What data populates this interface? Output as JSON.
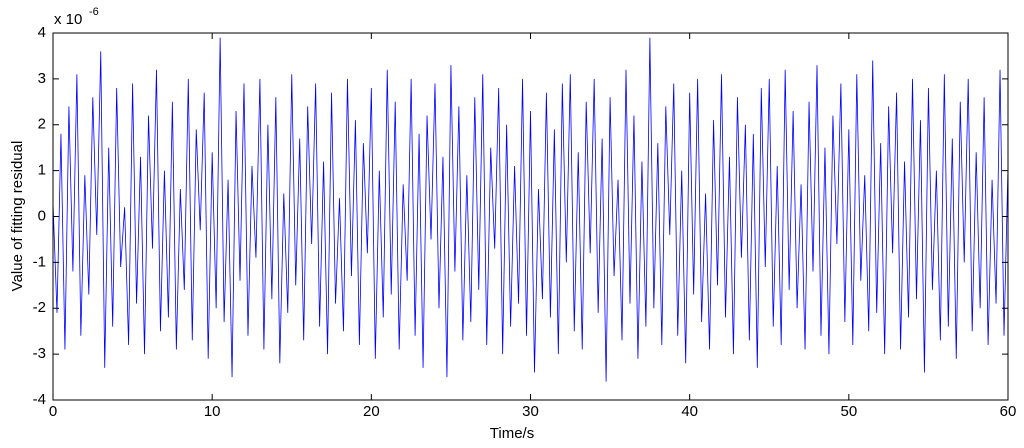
{
  "chart_data": {
    "type": "line",
    "xlabel": "Time/s",
    "ylabel": "Value of fitting residual",
    "exponent_label": {
      "base": "x 10",
      "power": "-6"
    },
    "color": "#0000ff",
    "xlim": [
      0,
      60
    ],
    "xticks": [
      0,
      10,
      20,
      30,
      40,
      50,
      60
    ],
    "ylim": [
      -4,
      4
    ],
    "yticks": [
      -4,
      -3,
      -2,
      -1,
      0,
      1,
      2,
      3,
      4
    ],
    "x": [
      0,
      0.25,
      0.5,
      0.75,
      1,
      1.25,
      1.5,
      1.75,
      2,
      2.25,
      2.5,
      2.75,
      3,
      3.25,
      3.5,
      3.75,
      4,
      4.25,
      4.5,
      4.75,
      5,
      5.25,
      5.5,
      5.75,
      6,
      6.25,
      6.5,
      6.75,
      7,
      7.25,
      7.5,
      7.75,
      8,
      8.25,
      8.5,
      8.75,
      9,
      9.25,
      9.5,
      9.75,
      10,
      10.25,
      10.5,
      10.75,
      11,
      11.25,
      11.5,
      11.75,
      12,
      12.25,
      12.5,
      12.75,
      13,
      13.25,
      13.5,
      13.75,
      14,
      14.25,
      14.5,
      14.75,
      15,
      15.25,
      15.5,
      15.75,
      16,
      16.25,
      16.5,
      16.75,
      17,
      17.25,
      17.5,
      17.75,
      18,
      18.25,
      18.5,
      18.75,
      19,
      19.25,
      19.5,
      19.75,
      20,
      20.25,
      20.5,
      20.75,
      21,
      21.25,
      21.5,
      21.75,
      22,
      22.25,
      22.5,
      22.75,
      23,
      23.25,
      23.5,
      23.75,
      24,
      24.25,
      24.5,
      24.75,
      25,
      25.25,
      25.5,
      25.75,
      26,
      26.25,
      26.5,
      26.75,
      27,
      27.25,
      27.5,
      27.75,
      28,
      28.25,
      28.5,
      28.75,
      29,
      29.25,
      29.5,
      29.75,
      30,
      30.25,
      30.5,
      30.75,
      31,
      31.25,
      31.5,
      31.75,
      32,
      32.25,
      32.5,
      32.75,
      33,
      33.25,
      33.5,
      33.75,
      34,
      34.25,
      34.5,
      34.75,
      35,
      35.25,
      35.5,
      35.75,
      36,
      36.25,
      36.5,
      36.75,
      37,
      37.25,
      37.5,
      37.75,
      38,
      38.25,
      38.5,
      38.75,
      39,
      39.25,
      39.5,
      39.75,
      40,
      40.25,
      40.5,
      40.75,
      41,
      41.25,
      41.5,
      41.75,
      42,
      42.25,
      42.5,
      42.75,
      43,
      43.25,
      43.5,
      43.75,
      44,
      44.25,
      44.5,
      44.75,
      45,
      45.25,
      45.5,
      45.75,
      46,
      46.25,
      46.5,
      46.75,
      47,
      47.25,
      47.5,
      47.75,
      48,
      48.25,
      48.5,
      48.75,
      49,
      49.25,
      49.5,
      49.75,
      50,
      50.25,
      50.5,
      50.75,
      51,
      51.25,
      51.5,
      51.75,
      52,
      52.25,
      52.5,
      52.75,
      53,
      53.25,
      53.5,
      53.75,
      54,
      54.25,
      54.5,
      54.75,
      55,
      55.25,
      55.5,
      55.75,
      56,
      56.25,
      56.5,
      56.75,
      57,
      57.25,
      57.5,
      57.75,
      58,
      58.25,
      58.5,
      58.75,
      59,
      59.25,
      59.5,
      59.75,
      60
    ],
    "values": [
      0.3,
      -2.1,
      1.8,
      -2.9,
      2.4,
      -1.2,
      3.1,
      -2.6,
      0.9,
      -1.7,
      2.6,
      -0.4,
      3.6,
      -3.3,
      1.5,
      -2.4,
      2.8,
      -1.1,
      0.2,
      -2.8,
      2.9,
      -1.9,
      1.3,
      -3.0,
      2.2,
      -0.7,
      3.2,
      -2.5,
      1.0,
      -2.2,
      2.5,
      -2.9,
      0.6,
      -1.6,
      3.0,
      -2.7,
      1.9,
      -0.3,
      2.7,
      -3.1,
      1.4,
      -2.0,
      3.9,
      -2.3,
      0.8,
      -3.5,
      2.3,
      -1.4,
      2.9,
      -2.6,
      1.1,
      -0.9,
      3.0,
      -2.9,
      2.0,
      -1.8,
      2.6,
      -3.2,
      0.5,
      -2.1,
      3.1,
      -1.5,
      1.7,
      -2.7,
      2.4,
      -0.6,
      2.9,
      -2.4,
      1.2,
      -3.0,
      2.7,
      -1.9,
      0.4,
      -2.5,
      3.0,
      -1.3,
      2.1,
      -2.8,
      1.6,
      -0.8,
      2.8,
      -3.1,
      1.0,
      -2.2,
      3.2,
      -1.7,
      2.5,
      -2.9,
      0.7,
      -1.4,
      3.0,
      -2.6,
      1.8,
      -3.3,
      2.2,
      -0.5,
      2.9,
      -2.0,
      1.3,
      -3.5,
      3.3,
      -1.2,
      2.4,
      -2.7,
      0.9,
      -2.3,
      2.6,
      -1.6,
      3.1,
      -2.8,
      1.5,
      -0.7,
      2.8,
      -3.0,
      2.0,
      -2.4,
      1.1,
      -1.9,
      3.0,
      -2.6,
      2.3,
      -3.4,
      0.6,
      -1.8,
      2.7,
      -2.2,
      1.9,
      -3.0,
      2.9,
      -1.0,
      3.1,
      -2.5,
      1.4,
      -2.9,
      2.5,
      -0.8,
      3.0,
      -2.1,
      1.7,
      -3.6,
      2.6,
      -1.3,
      0.8,
      -2.7,
      3.2,
      -1.9,
      2.2,
      -3.1,
      1.2,
      -2.4,
      3.9,
      -2.0,
      1.6,
      -2.8,
      2.4,
      -0.4,
      2.9,
      -2.6,
      1.0,
      -3.2,
      2.7,
      -1.7,
      3.0,
      -2.3,
      0.5,
      -2.9,
      2.1,
      -1.5,
      3.1,
      -2.2,
      1.3,
      -3.0,
      2.6,
      -0.9,
      2.0,
      -2.7,
      1.8,
      -3.3,
      2.8,
      -1.1,
      3.0,
      -2.4,
      1.1,
      -2.8,
      3.2,
      -1.6,
      2.3,
      -2.0,
      0.7,
      -2.9,
      2.5,
      -1.2,
      3.3,
      -2.6,
      1.5,
      -3.0,
      2.2,
      -0.6,
      2.9,
      -2.3,
      1.9,
      -2.8,
      3.1,
      -1.4,
      0.9,
      -2.5,
      3.4,
      -2.1,
      1.6,
      -3.0,
      2.4,
      -0.8,
      2.7,
      -2.9,
      1.2,
      -2.2,
      3.0,
      -1.8,
      2.1,
      -3.4,
      2.8,
      -1.6,
      1.0,
      -2.7,
      3.1,
      -2.4,
      1.7,
      -3.1,
      2.5,
      -1.0,
      3.0,
      -2.5,
      1.4,
      -2.0,
      2.6,
      -2.8,
      0.8,
      -1.9,
      3.2,
      -2.6,
      1.1
    ]
  }
}
